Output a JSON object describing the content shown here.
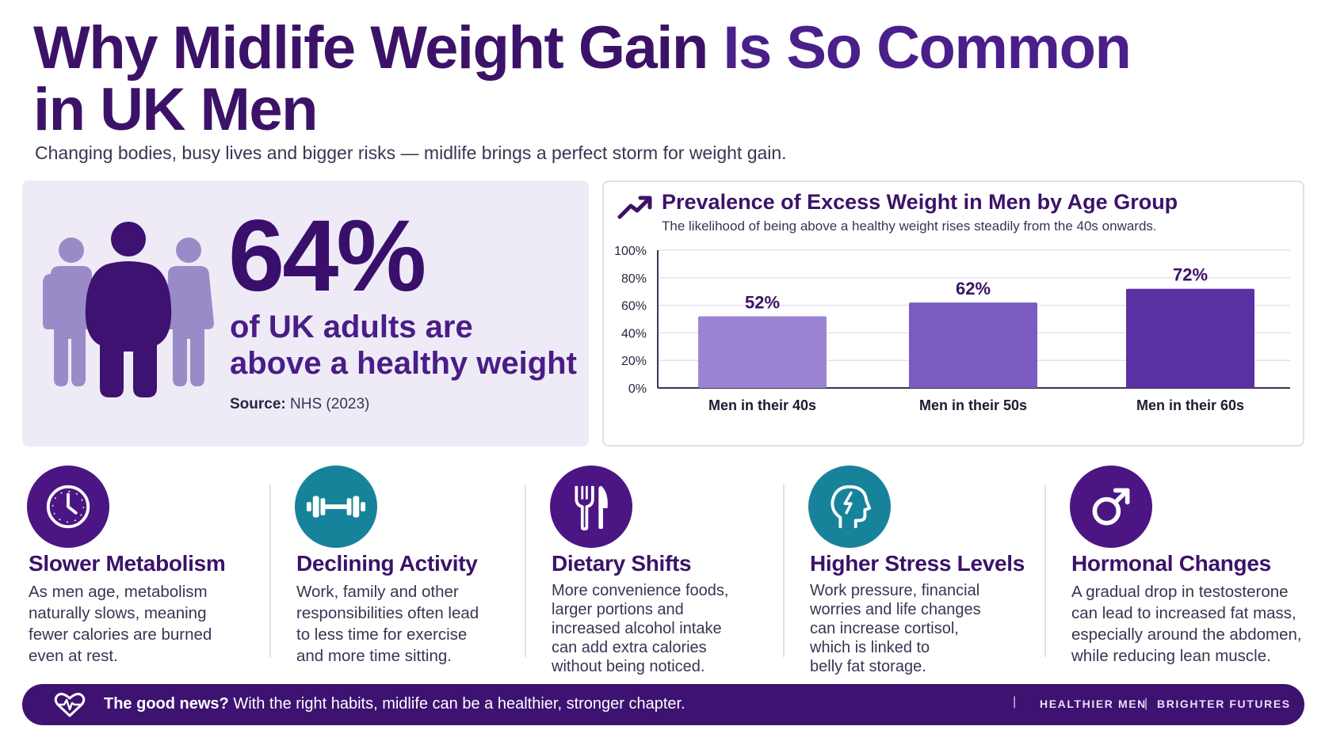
{
  "header": {
    "title_strong": "Why Midlife Weight Gain",
    "title_light": "Is So Common",
    "title_line2": "in UK Men",
    "subtitle": "Changing bodies, busy lives and bigger risks — midlife brings a perfect storm for weight gain."
  },
  "stat": {
    "value": "64%",
    "line1": "of UK adults are",
    "line2": "above a healthy weight",
    "source_label": "Source:",
    "source_value": "NHS (2023)",
    "icon": "people-group-icon"
  },
  "chart_data": {
    "type": "bar",
    "title": "Prevalence of Excess Weight in Men by Age Group",
    "subtitle": "The likelihood of being above a healthy weight rises steadily from the 40s onwards.",
    "categories": [
      "Men in their 40s",
      "Men in their 50s",
      "Men in their 60s"
    ],
    "values": [
      52,
      62,
      72
    ],
    "value_labels": [
      "52%",
      "62%",
      "72%"
    ],
    "yticks": [
      "0%",
      "20%",
      "40%",
      "60%",
      "80%",
      "100%"
    ],
    "ylim": [
      0,
      100
    ],
    "grid": true,
    "colors": [
      "#9b85d2",
      "#7b5cc1",
      "#5a31a3"
    ]
  },
  "factors": [
    {
      "title": "Slower Metabolism",
      "icon": "clock-icon",
      "color": "purple",
      "lines": [
        "As men age, metabolism",
        "naturally slows, meaning",
        "fewer calories are burned",
        "even at rest."
      ]
    },
    {
      "title": "Declining Activity",
      "icon": "dumbbell-icon",
      "color": "teal",
      "lines": [
        "Work, family and other",
        "responsibilities often lead",
        "to less time for exercise",
        "and more time sitting."
      ]
    },
    {
      "title": "Dietary Shifts",
      "icon": "fork-knife-icon",
      "color": "purple",
      "lines": [
        "More convenience foods,",
        "larger portions and",
        "increased alcohol intake",
        "can add extra calories",
        "without being noticed."
      ]
    },
    {
      "title": "Higher Stress Levels",
      "icon": "stressed-head-icon",
      "color": "teal",
      "lines": [
        "Work pressure, financial",
        "worries and life changes",
        "can increase cortisol,",
        "which is linked to",
        "belly fat storage."
      ]
    },
    {
      "title": "Hormonal Changes",
      "icon": "male-symbol-icon",
      "color": "purple",
      "lines": [
        "A gradual drop in testosterone",
        "can lead to increased fat mass,",
        "especially around the abdomen,",
        "while reducing lean muscle."
      ]
    }
  ],
  "banner": {
    "lead": "The good news?",
    "text": " With the right habits, midlife can be a healthier, stronger chapter.",
    "separator": "|",
    "tag1": "HEALTHIER MEN",
    "tag_sep": "|",
    "tag2": "BRIGHTER FUTURES",
    "icon": "heart-pulse-icon"
  },
  "colors": {
    "primary": "#3c1269",
    "teal": "#17839a",
    "card_bg": "#eeebf7"
  }
}
